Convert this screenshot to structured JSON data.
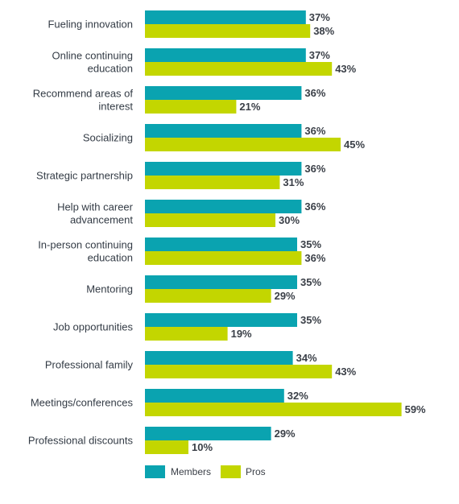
{
  "chart_data": {
    "type": "bar",
    "orientation": "horizontal",
    "categories": [
      [
        "Fueling innovation"
      ],
      [
        "Online continuing",
        "education"
      ],
      [
        "Recommend areas of",
        "interest"
      ],
      [
        "Socializing"
      ],
      [
        "Strategic partnership"
      ],
      [
        "Help with career",
        "advancement"
      ],
      [
        "In-person continuing",
        "education"
      ],
      [
        "Mentoring"
      ],
      [
        "Job opportunities"
      ],
      [
        "Professional family"
      ],
      [
        "Meetings/conferences"
      ],
      [
        "Professional discounts"
      ]
    ],
    "series": [
      {
        "name": "Members",
        "color": "#0aa3b0",
        "values": [
          37,
          37,
          36,
          36,
          36,
          36,
          35,
          35,
          35,
          34,
          32,
          29
        ],
        "labels": [
          "37%",
          "37%",
          "36%",
          "36%",
          "36%",
          "36%",
          "35%",
          "35%",
          "35%",
          "34%",
          "32%",
          "29%"
        ]
      },
      {
        "name": "Pros",
        "color": "#c3d600",
        "values": [
          38,
          43,
          21,
          45,
          31,
          30,
          36,
          29,
          19,
          43,
          59,
          10
        ],
        "labels": [
          "38%",
          "43%",
          "21%",
          "45%",
          "31%",
          "30%",
          "36%",
          "29%",
          "19%",
          "43%",
          "59%",
          "10%"
        ]
      }
    ],
    "xlim": [
      0,
      100
    ],
    "grid": false,
    "legend_position": "bottom-left",
    "title": "",
    "xlabel": "",
    "ylabel": ""
  }
}
